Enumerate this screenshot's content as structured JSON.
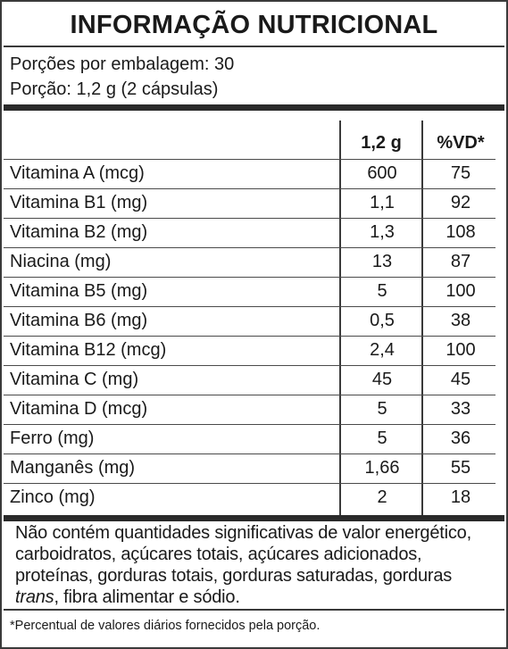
{
  "title": "INFORMAÇÃO NUTRICIONAL",
  "servings_per_package": "Porções por embalagem: 30",
  "serving_size": "Porção: 1,2 g (2 cápsulas)",
  "columns": {
    "amount": "1,2 g",
    "dv": "%VD*"
  },
  "nutrients": [
    {
      "name": "Vitamina A (mcg)",
      "amount": "600",
      "dv": "75"
    },
    {
      "name": "Vitamina B1 (mg)",
      "amount": "1,1",
      "dv": "92"
    },
    {
      "name": "Vitamina B2 (mg)",
      "amount": "1,3",
      "dv": "108"
    },
    {
      "name": "Niacina (mg)",
      "amount": "13",
      "dv": "87"
    },
    {
      "name": "Vitamina B5 (mg)",
      "amount": "5",
      "dv": "100"
    },
    {
      "name": "Vitamina B6 (mg)",
      "amount": "0,5",
      "dv": "38"
    },
    {
      "name": "Vitamina B12 (mcg)",
      "amount": "2,4",
      "dv": "100"
    },
    {
      "name": "Vitamina C (mg)",
      "amount": "45",
      "dv": "45"
    },
    {
      "name": "Vitamina D (mcg)",
      "amount": "5",
      "dv": "33"
    },
    {
      "name": "Ferro (mg)",
      "amount": "5",
      "dv": "36"
    },
    {
      "name": "Manganês (mg)",
      "amount": "1,66",
      "dv": "55"
    },
    {
      "name": "Zinco (mg)",
      "amount": "2",
      "dv": "18"
    }
  ],
  "note": {
    "before_italic": "Não contém quantidades significativas de valor energético, carboidratos, açúcares totais, açúcares adicionados, proteínas, gorduras totais, gorduras saturadas, gorduras ",
    "italic": "trans",
    "after_italic": ", fibra alimentar e sódio."
  },
  "footnote": "*Percentual de valores diários fornecidos pela porção."
}
